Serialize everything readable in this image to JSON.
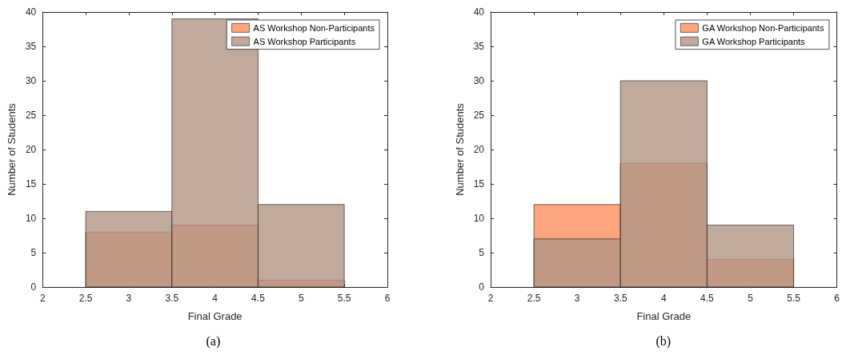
{
  "chart_data": [
    {
      "type": "histogram",
      "xlabel": "Final Grade",
      "ylabel": "Number of Students",
      "bins": [
        2.5,
        3.5,
        4.5,
        5.5
      ],
      "series": [
        {
          "name": "AS Workshop Non-Participants",
          "color": "#fd8f5e",
          "values": [
            8,
            9,
            1
          ]
        },
        {
          "name": "AS Workshop Participants",
          "color": "#b09585",
          "values": [
            11,
            39,
            12
          ]
        }
      ],
      "xlim": [
        2,
        6
      ],
      "xticks": [
        2,
        2.5,
        3,
        3.5,
        4,
        4.5,
        5,
        5.5,
        6
      ],
      "ylim": [
        0,
        40
      ],
      "yticks": [
        0,
        5,
        10,
        15,
        20,
        25,
        30,
        35,
        40
      ],
      "grid": false,
      "legend": "top right",
      "annotations": [
        "(a)"
      ]
    },
    {
      "type": "histogram",
      "xlabel": "Final Grade",
      "ylabel": "Number of Students",
      "bins": [
        2.5,
        3.5,
        4.5,
        5.5
      ],
      "series": [
        {
          "name": "GA Workshop Non-Participants",
          "color": "#fd8f5e",
          "values": [
            12,
            18,
            4
          ]
        },
        {
          "name": "GA Workshop Participants",
          "color": "#b09585",
          "values": [
            7,
            30,
            9
          ]
        }
      ],
      "xlim": [
        2,
        6
      ],
      "xticks": [
        2,
        2.5,
        3,
        3.5,
        4,
        4.5,
        5,
        5.5,
        6
      ],
      "ylim": [
        0,
        40
      ],
      "yticks": [
        0,
        5,
        10,
        15,
        20,
        25,
        30,
        35,
        40
      ],
      "grid": false,
      "legend": "top right",
      "annotations": [
        "(b)"
      ]
    }
  ]
}
